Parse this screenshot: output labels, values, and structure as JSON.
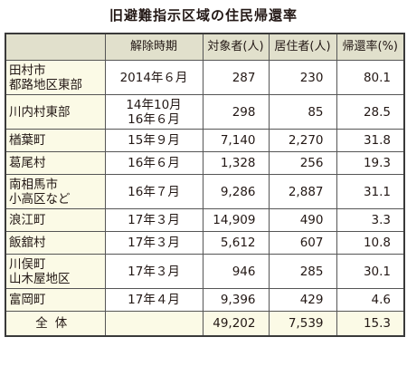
{
  "title": "旧避難指示区域の住民帰還率",
  "headers": [
    "",
    "解除時期",
    "対象者(人)",
    "居住者(人)",
    "帰還率(%)"
  ],
  "rows": [
    {
      "name": [
        "田村市",
        "都路地区東部"
      ],
      "period": [
        "2014年６月"
      ],
      "target": "287",
      "resident": "230",
      "rate": "80.1"
    },
    {
      "name": [
        "川内村東部"
      ],
      "period": [
        "14年10月",
        "16年６月"
      ],
      "target": "298",
      "resident": "85",
      "rate": "28.5"
    },
    {
      "name": [
        "楢葉町"
      ],
      "period": [
        "15年９月"
      ],
      "target": "7,140",
      "resident": "2,270",
      "rate": "31.8"
    },
    {
      "name": [
        "葛尾村"
      ],
      "period": [
        "16年６月"
      ],
      "target": "1,328",
      "resident": "256",
      "rate": "19.3"
    },
    {
      "name": [
        "南相馬市",
        "小高区など"
      ],
      "period": [
        "16年７月"
      ],
      "target": "9,286",
      "resident": "2,887",
      "rate": "31.1"
    },
    {
      "name": [
        "浪江町"
      ],
      "period": [
        "17年３月"
      ],
      "target": "14,909",
      "resident": "490",
      "rate": "3.3"
    },
    {
      "name": [
        "飯舘村"
      ],
      "period": [
        "17年３月"
      ],
      "target": "5,612",
      "resident": "607",
      "rate": "10.8"
    },
    {
      "name": [
        "川俣町",
        "山木屋地区"
      ],
      "period": [
        "17年３月"
      ],
      "target": "946",
      "resident": "285",
      "rate": "30.1"
    },
    {
      "name": [
        "富岡町"
      ],
      "period": [
        "17年４月"
      ],
      "target": "9,396",
      "resident": "429",
      "rate": "4.6"
    }
  ],
  "total": {
    "name": "全体",
    "period": "",
    "target": "49,202",
    "resident": "7,539",
    "rate": "15.3"
  }
}
